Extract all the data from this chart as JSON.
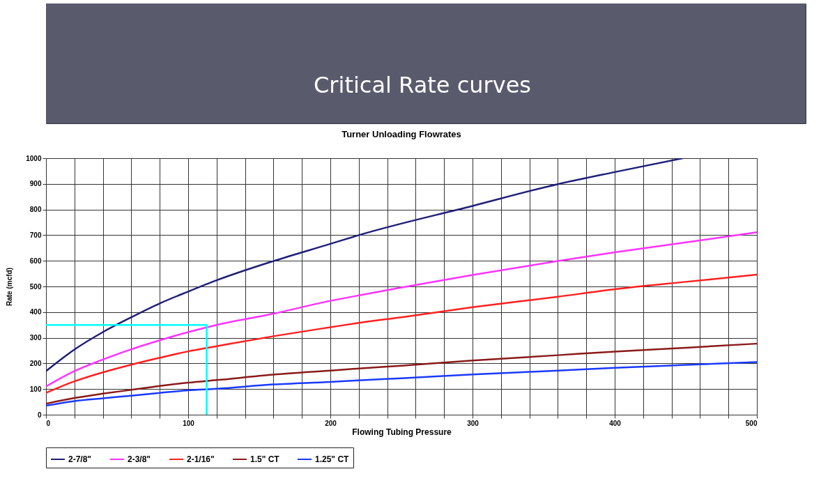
{
  "chart_data": {
    "type": "line",
    "title": "Critical Rate curves",
    "subtitle": "Turner Unloading Flowrates",
    "xlabel": "Flowing Tubing Pressure",
    "ylabel": "Rate (mcfd)",
    "x": [
      0,
      20,
      40,
      60,
      80,
      100,
      120,
      160,
      200,
      220,
      250,
      300,
      360,
      400,
      450,
      500
    ],
    "series": [
      {
        "name": "2-7/8\"",
        "color": "#1f1f7a",
        "x": [
          0,
          20,
          40,
          60,
          80,
          100,
          120,
          160,
          200,
          220,
          300,
          360,
          400,
          448
        ],
        "values": [
          170,
          254,
          322,
          380,
          434,
          480,
          524,
          599,
          666,
          700,
          814,
          899,
          946,
          1000
        ]
      },
      {
        "name": "2-3/8\"",
        "color": "#ff33ff",
        "values": [
          110,
          170,
          215,
          255,
          290,
          322,
          350,
          394,
          444,
          465,
          496,
          545,
          599,
          633,
          672,
          711
        ]
      },
      {
        "name": "2-1/16\"",
        "color": "#ff2020",
        "values": [
          85,
          130,
          165,
          195,
          222,
          247,
          267,
          306,
          341,
          358,
          380,
          419,
          460,
          489,
          518,
          546
        ]
      },
      {
        "name": "1.5\" CT",
        "color": "#8b1a1a",
        "values": [
          43,
          65,
          82,
          97,
          112,
          125,
          135,
          156,
          172,
          180,
          191,
          211,
          232,
          246,
          261,
          277
        ]
      },
      {
        "name": "1.25\" CT",
        "color": "#1a3aff",
        "values": [
          35,
          53,
          64,
          74,
          85,
          95,
          101,
          118,
          128,
          134,
          142,
          157,
          172,
          183,
          194,
          205
        ]
      },
      {
        "color": "#00ffff",
        "x": [
          0,
          113,
          113
        ],
        "values": [
          350,
          350,
          0
        ]
      }
    ],
    "xlim": [
      0,
      500
    ],
    "ylim": [
      0,
      1000
    ],
    "xticks": [
      0,
      {
        "value": 20,
        "label": null
      },
      {
        "value": 40,
        "label": null
      },
      {
        "value": 60,
        "label": null
      },
      {
        "value": 80,
        "label": null
      },
      100,
      {
        "value": 120,
        "label": null
      },
      {
        "value": 140,
        "label": null
      },
      {
        "value": 160,
        "label": null
      },
      {
        "value": 180,
        "label": null
      },
      200,
      {
        "value": 220,
        "label": null
      },
      {
        "value": 240,
        "label": null
      },
      {
        "value": 260,
        "label": null
      },
      {
        "value": 280,
        "label": null
      },
      300,
      {
        "value": 320,
        "label": null
      },
      {
        "value": 340,
        "label": null
      },
      {
        "value": 360,
        "label": null
      },
      {
        "value": 380,
        "label": null
      },
      400,
      {
        "value": 420,
        "label": null
      },
      {
        "value": 440,
        "label": null
      },
      {
        "value": 460,
        "label": null
      },
      {
        "value": 480,
        "label": null
      },
      500
    ],
    "yticks": [
      0,
      100,
      200,
      300,
      400,
      500,
      600,
      700,
      800,
      900,
      1000
    ],
    "grid": true,
    "legend": "bottom",
    "line_style": "solid",
    "marker": "none"
  }
}
